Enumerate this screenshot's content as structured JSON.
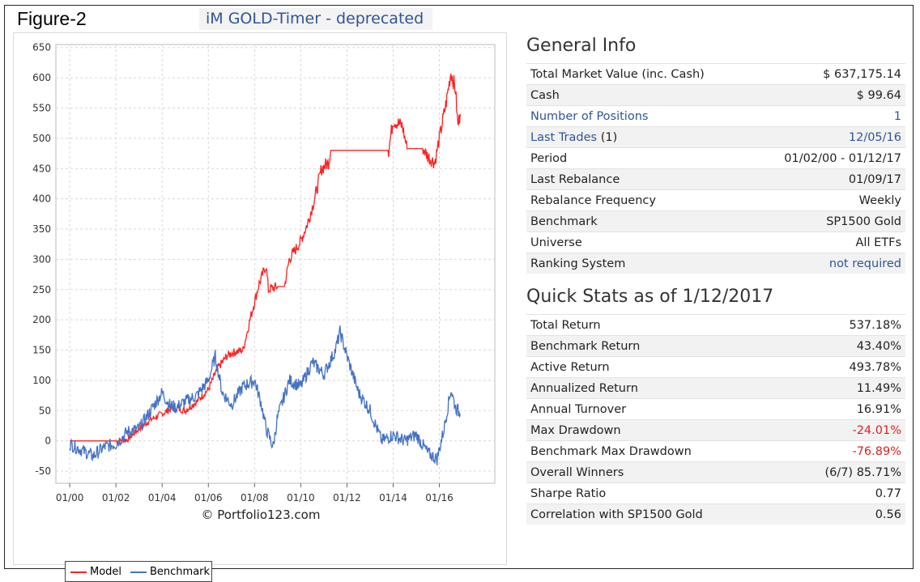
{
  "figure_label": "Figure-2",
  "title": "iM GOLD-Timer - deprecated",
  "copyright": "© Portfolio123.com",
  "general_info": {
    "heading": "General Info",
    "rows": [
      {
        "label": "Total Market Value (inc. Cash)",
        "value": "$ 637,175.14"
      },
      {
        "label": "Cash",
        "value": "$ 99.64"
      },
      {
        "label": "Number of Positions",
        "value": "1",
        "link": true
      },
      {
        "label": "Last Trades",
        "label_suffix": "(1)",
        "value": "12/05/16",
        "link": true
      },
      {
        "label": "Period",
        "value": "01/02/00 - 01/12/17"
      },
      {
        "label": "Last Rebalance",
        "value": "01/09/17"
      },
      {
        "label": "Rebalance Frequency",
        "value": "Weekly"
      },
      {
        "label": "Benchmark",
        "value": "SP1500 Gold"
      },
      {
        "label": "Universe",
        "value": "All ETFs"
      },
      {
        "label": "Ranking System",
        "value": "not required",
        "value_link": true
      }
    ]
  },
  "quick_stats": {
    "heading": "Quick Stats as of 1/12/2017",
    "rows": [
      {
        "label": "Total Return",
        "value": "537.18%"
      },
      {
        "label": "Benchmark Return",
        "value": "43.40%"
      },
      {
        "label": "Active Return",
        "value": "493.78%"
      },
      {
        "label": "Annualized Return",
        "value": "11.49%"
      },
      {
        "label": "Annual Turnover",
        "value": "16.91%"
      },
      {
        "label": "Max Drawdown",
        "value": "-24.01%",
        "negative": true
      },
      {
        "label": "Benchmark Max Drawdown",
        "value": "-76.89%",
        "negative": true
      },
      {
        "label": "Overall Winners",
        "value": "(6/7) 85.71%"
      },
      {
        "label": "Sharpe Ratio",
        "value": "0.77"
      },
      {
        "label": "Correlation with SP1500 Gold",
        "value": "0.56"
      }
    ]
  },
  "chart_data": {
    "type": "line",
    "x_tick_labels": [
      "01/00",
      "01/02",
      "01/04",
      "01/06",
      "01/08",
      "01/10",
      "01/12",
      "01/14",
      "01/16"
    ],
    "x_ticks": [
      2000,
      2002,
      2004,
      2006,
      2008,
      2010,
      2012,
      2014,
      2016
    ],
    "xlim": [
      1999.4,
      2018.4
    ],
    "y_ticks": [
      -50,
      0,
      50,
      100,
      150,
      200,
      250,
      300,
      350,
      400,
      450,
      500,
      550,
      600,
      650
    ],
    "ylim": [
      -70,
      655
    ],
    "grid": true,
    "legend_position": "bottom-left",
    "series": [
      {
        "name": "Model",
        "color": "#ff2020",
        "points": [
          [
            2000.0,
            0
          ],
          [
            2002.0,
            0
          ],
          [
            2002.5,
            2
          ],
          [
            2003.0,
            20
          ],
          [
            2003.5,
            35
          ],
          [
            2004.0,
            45
          ],
          [
            2004.5,
            55
          ],
          [
            2005.0,
            50
          ],
          [
            2005.5,
            65
          ],
          [
            2006.0,
            85
          ],
          [
            2006.4,
            120
          ],
          [
            2006.8,
            140
          ],
          [
            2007.0,
            145
          ],
          [
            2007.5,
            150
          ],
          [
            2007.8,
            200
          ],
          [
            2008.2,
            260
          ],
          [
            2008.5,
            290
          ],
          [
            2008.6,
            250
          ],
          [
            2009.0,
            255
          ],
          [
            2009.3,
            255
          ],
          [
            2009.5,
            300
          ],
          [
            2010.0,
            330
          ],
          [
            2010.3,
            360
          ],
          [
            2010.6,
            400
          ],
          [
            2010.9,
            450
          ],
          [
            2011.2,
            460
          ],
          [
            2011.3,
            480
          ],
          [
            2013.8,
            480
          ],
          [
            2014.0,
            530
          ],
          [
            2014.4,
            520
          ],
          [
            2014.6,
            483
          ],
          [
            2015.3,
            483
          ],
          [
            2015.5,
            470
          ],
          [
            2015.8,
            460
          ],
          [
            2016.0,
            500
          ],
          [
            2016.3,
            560
          ],
          [
            2016.5,
            610
          ],
          [
            2016.7,
            580
          ],
          [
            2016.8,
            520
          ],
          [
            2016.9,
            540
          ]
        ]
      },
      {
        "name": "Benchmark",
        "color": "#4472c4",
        "points": [
          [
            2000.0,
            -5
          ],
          [
            2000.5,
            -15
          ],
          [
            2001.0,
            -25
          ],
          [
            2001.5,
            -10
          ],
          [
            2002.0,
            -5
          ],
          [
            2002.5,
            15
          ],
          [
            2003.0,
            20
          ],
          [
            2003.5,
            50
          ],
          [
            2004.0,
            80
          ],
          [
            2004.3,
            60
          ],
          [
            2004.6,
            55
          ],
          [
            2005.0,
            65
          ],
          [
            2005.5,
            75
          ],
          [
            2006.0,
            100
          ],
          [
            2006.3,
            140
          ],
          [
            2006.6,
            80
          ],
          [
            2007.0,
            60
          ],
          [
            2007.5,
            90
          ],
          [
            2008.0,
            100
          ],
          [
            2008.3,
            60
          ],
          [
            2008.5,
            20
          ],
          [
            2008.8,
            -10
          ],
          [
            2009.0,
            40
          ],
          [
            2009.5,
            100
          ],
          [
            2010.0,
            90
          ],
          [
            2010.5,
            130
          ],
          [
            2011.0,
            110
          ],
          [
            2011.5,
            150
          ],
          [
            2011.7,
            180
          ],
          [
            2012.0,
            140
          ],
          [
            2012.5,
            80
          ],
          [
            2013.0,
            50
          ],
          [
            2013.5,
            0
          ],
          [
            2014.0,
            10
          ],
          [
            2014.5,
            0
          ],
          [
            2015.0,
            10
          ],
          [
            2015.5,
            -20
          ],
          [
            2015.9,
            -30
          ],
          [
            2016.2,
            20
          ],
          [
            2016.5,
            85
          ],
          [
            2016.7,
            55
          ],
          [
            2016.9,
            45
          ]
        ]
      }
    ]
  }
}
